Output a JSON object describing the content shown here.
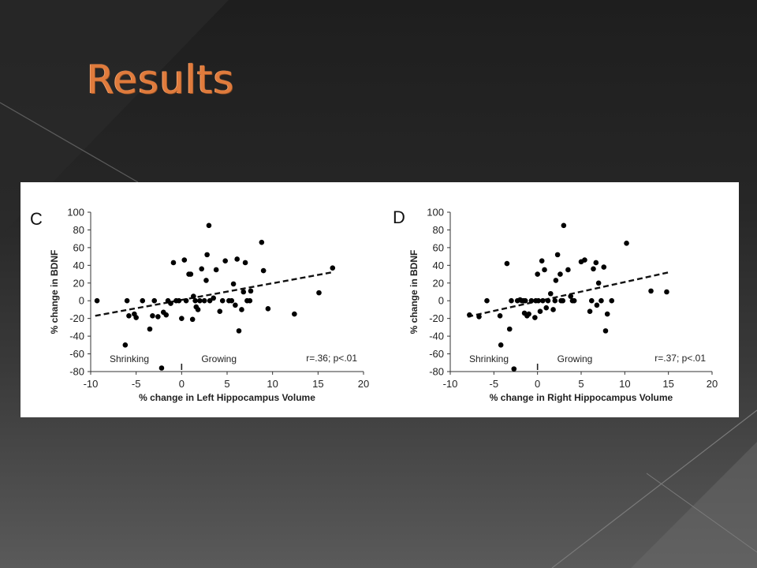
{
  "slide": {
    "title": "Results",
    "title_color": "#e07b3c",
    "background_color": "#262626",
    "panel_background": "#ffffff"
  },
  "chart_data": [
    {
      "type": "scatter",
      "panel_label": "C",
      "xlabel": "% change in Left Hippocampus Volume",
      "ylabel": "% change in BDNF",
      "xlim": [
        -10,
        20
      ],
      "ylim": [
        -80,
        100
      ],
      "xticks": [
        -10,
        -5,
        0,
        5,
        10,
        15,
        20
      ],
      "yticks": [
        -80,
        -60,
        -40,
        -20,
        0,
        20,
        40,
        60,
        80,
        100
      ],
      "xtick_labels": [
        "-10",
        "-5",
        "0",
        "5",
        "10",
        "15",
        "20"
      ],
      "ytick_labels": [
        "-80",
        "-60",
        "-40",
        "-20",
        "0",
        "20",
        "40",
        "60",
        "80",
        "100"
      ],
      "annotations": {
        "left": "Shrinking",
        "right": "Growing",
        "stats": "r=.36; p<.01"
      },
      "marker_color": "#000000",
      "trend_line": {
        "style": "dashed",
        "x": [
          -9.5,
          16.5
        ],
        "y": [
          -17,
          32
        ]
      },
      "points": {
        "x": [
          -9.3,
          -6.2,
          -6,
          -5.8,
          -5.2,
          -5,
          -4.3,
          -3.5,
          -3.2,
          -3,
          -2.6,
          -2.2,
          -2,
          -1.7,
          -1.5,
          -1.2,
          -0.9,
          -0.6,
          -0.3,
          0,
          0.3,
          0.5,
          0.8,
          1,
          1.2,
          1.3,
          1.5,
          1.6,
          1.8,
          2,
          2.2,
          2.5,
          2.7,
          2.8,
          3,
          3.1,
          3.5,
          3.8,
          4.2,
          4.5,
          4.8,
          5.2,
          5.5,
          5.7,
          5.9,
          6.1,
          6.3,
          6.6,
          6.8,
          7,
          7.2,
          7.5,
          7.6,
          8.8,
          9,
          9.5,
          12.4,
          15.1,
          16.6
        ],
        "y": [
          0,
          -50,
          0,
          -17,
          -15,
          -19,
          0,
          -32,
          -17,
          0,
          -18,
          -76,
          -13,
          -16,
          0,
          -3,
          43,
          0,
          0,
          -20,
          46,
          0,
          30,
          30,
          -21,
          5,
          0,
          -7,
          -10,
          0,
          36,
          0,
          23,
          52,
          85,
          0,
          3,
          35,
          -12,
          0,
          45,
          0,
          0,
          19,
          -5,
          47,
          -34,
          -10,
          10,
          43,
          0,
          0,
          11,
          66,
          34,
          -9,
          -15,
          9,
          37
        ]
      }
    },
    {
      "type": "scatter",
      "panel_label": "D",
      "xlabel": "% change in Right Hippocampus Volume",
      "ylabel": "% change in BDNF",
      "xlim": [
        -10,
        20
      ],
      "ylim": [
        -80,
        100
      ],
      "xticks": [
        -10,
        -5,
        0,
        5,
        10,
        15,
        20
      ],
      "yticks": [
        -80,
        -60,
        -40,
        -20,
        0,
        20,
        40,
        60,
        80,
        100
      ],
      "xtick_labels": [
        "-10",
        "-5",
        "0",
        "5",
        "10",
        "15",
        "20"
      ],
      "ytick_labels": [
        "-80",
        "-60",
        "-40",
        "-20",
        "0",
        "20",
        "40",
        "60",
        "80",
        "100"
      ],
      "annotations": {
        "left": "Shrinking",
        "right": "Growing",
        "stats": "r=.37; p<.01"
      },
      "marker_color": "#000000",
      "trend_line": {
        "style": "dashed",
        "x": [
          -8,
          15
        ],
        "y": [
          -18,
          32
        ]
      },
      "points": {
        "x": [
          -7.8,
          -6.7,
          -5.8,
          -4.3,
          -4.2,
          -3.5,
          -3.2,
          -3,
          -2.7,
          -2.3,
          -2,
          -1.8,
          -1.6,
          -1.5,
          -1.4,
          -1.2,
          -1,
          -0.7,
          -0.3,
          -0.2,
          0,
          0.1,
          0.3,
          0.5,
          0.6,
          0.8,
          1,
          1.2,
          1.5,
          1.8,
          2,
          2.1,
          2.3,
          2.6,
          2.7,
          2.9,
          3,
          3.5,
          3.8,
          4,
          4.2,
          5,
          5.4,
          6,
          6.2,
          6.4,
          6.7,
          6.8,
          7,
          7.3,
          7.6,
          7.8,
          8,
          8.5,
          10.2,
          13,
          14.8
        ],
        "y": [
          -16,
          -18,
          0,
          -17,
          -50,
          42,
          -32,
          0,
          -77,
          0,
          1,
          0,
          0,
          -14,
          0,
          -17,
          -15,
          0,
          -19,
          0,
          30,
          0,
          -12,
          45,
          0,
          35,
          -8,
          0,
          8,
          -10,
          0,
          23,
          52,
          30,
          0,
          0,
          85,
          35,
          5,
          0,
          0,
          44,
          46,
          -12,
          0,
          36,
          43,
          -5,
          20,
          0,
          38,
          -34,
          -15,
          0,
          65,
          11,
          10
        ]
      }
    }
  ]
}
